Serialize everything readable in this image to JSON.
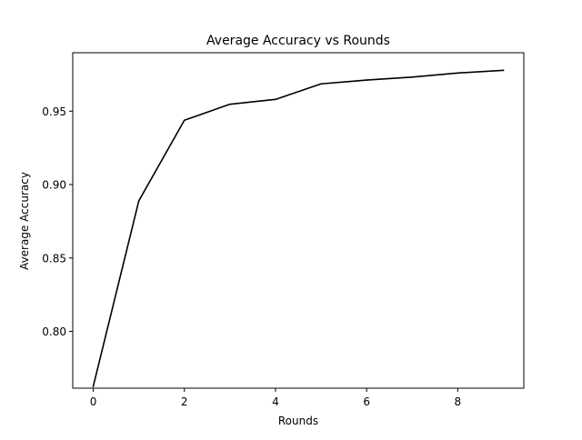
{
  "chart_data": {
    "type": "line",
    "title": "Average Accuracy vs Rounds",
    "xlabel": "Rounds",
    "ylabel": "Average Accuracy",
    "xlim": [
      -0.45,
      9.45
    ],
    "ylim": [
      0.7613,
      0.9898
    ],
    "xticks": [
      0,
      2,
      4,
      6,
      8
    ],
    "xtick_labels": [
      "0",
      "2",
      "4",
      "6",
      "8"
    ],
    "yticks": [
      0.8,
      0.85,
      0.9,
      0.95
    ],
    "ytick_labels": [
      "0.80",
      "0.85",
      "0.90",
      "0.95"
    ],
    "grid": false,
    "series": [
      {
        "name": "Average Accuracy",
        "color": "#000000",
        "x": [
          0,
          1,
          2,
          3,
          4,
          5,
          6,
          7,
          8,
          9
        ],
        "y": [
          0.7626,
          0.8889,
          0.9438,
          0.9547,
          0.958,
          0.9686,
          0.9712,
          0.9732,
          0.976,
          0.9778
        ]
      }
    ]
  }
}
